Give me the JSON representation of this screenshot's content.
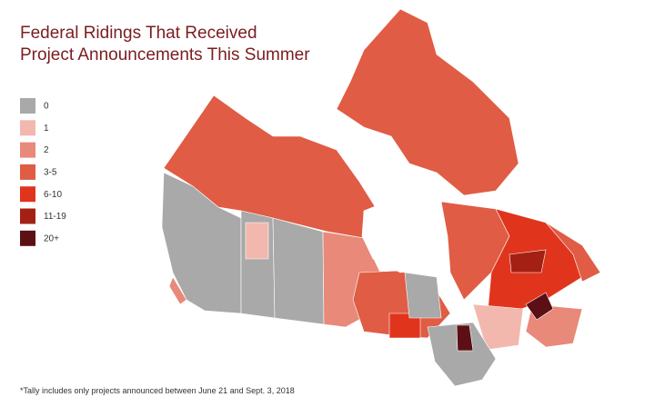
{
  "title": [
    "Federal Ridings That Received",
    "Project Announcements This Summer"
  ],
  "legend": [
    {
      "label": "0",
      "color": "#a9a9a9"
    },
    {
      "label": "1",
      "color": "#f2b8ae"
    },
    {
      "label": "2",
      "color": "#e8897a"
    },
    {
      "label": "3-5",
      "color": "#e05c45"
    },
    {
      "label": "6-10",
      "color": "#e1341d"
    },
    {
      "label": "11-19",
      "color": "#a52014"
    },
    {
      "label": "20+",
      "color": "#5c1015"
    }
  ],
  "footnote": "*Tally includes only projects announced between June 21 and Sept. 3, 2018"
}
